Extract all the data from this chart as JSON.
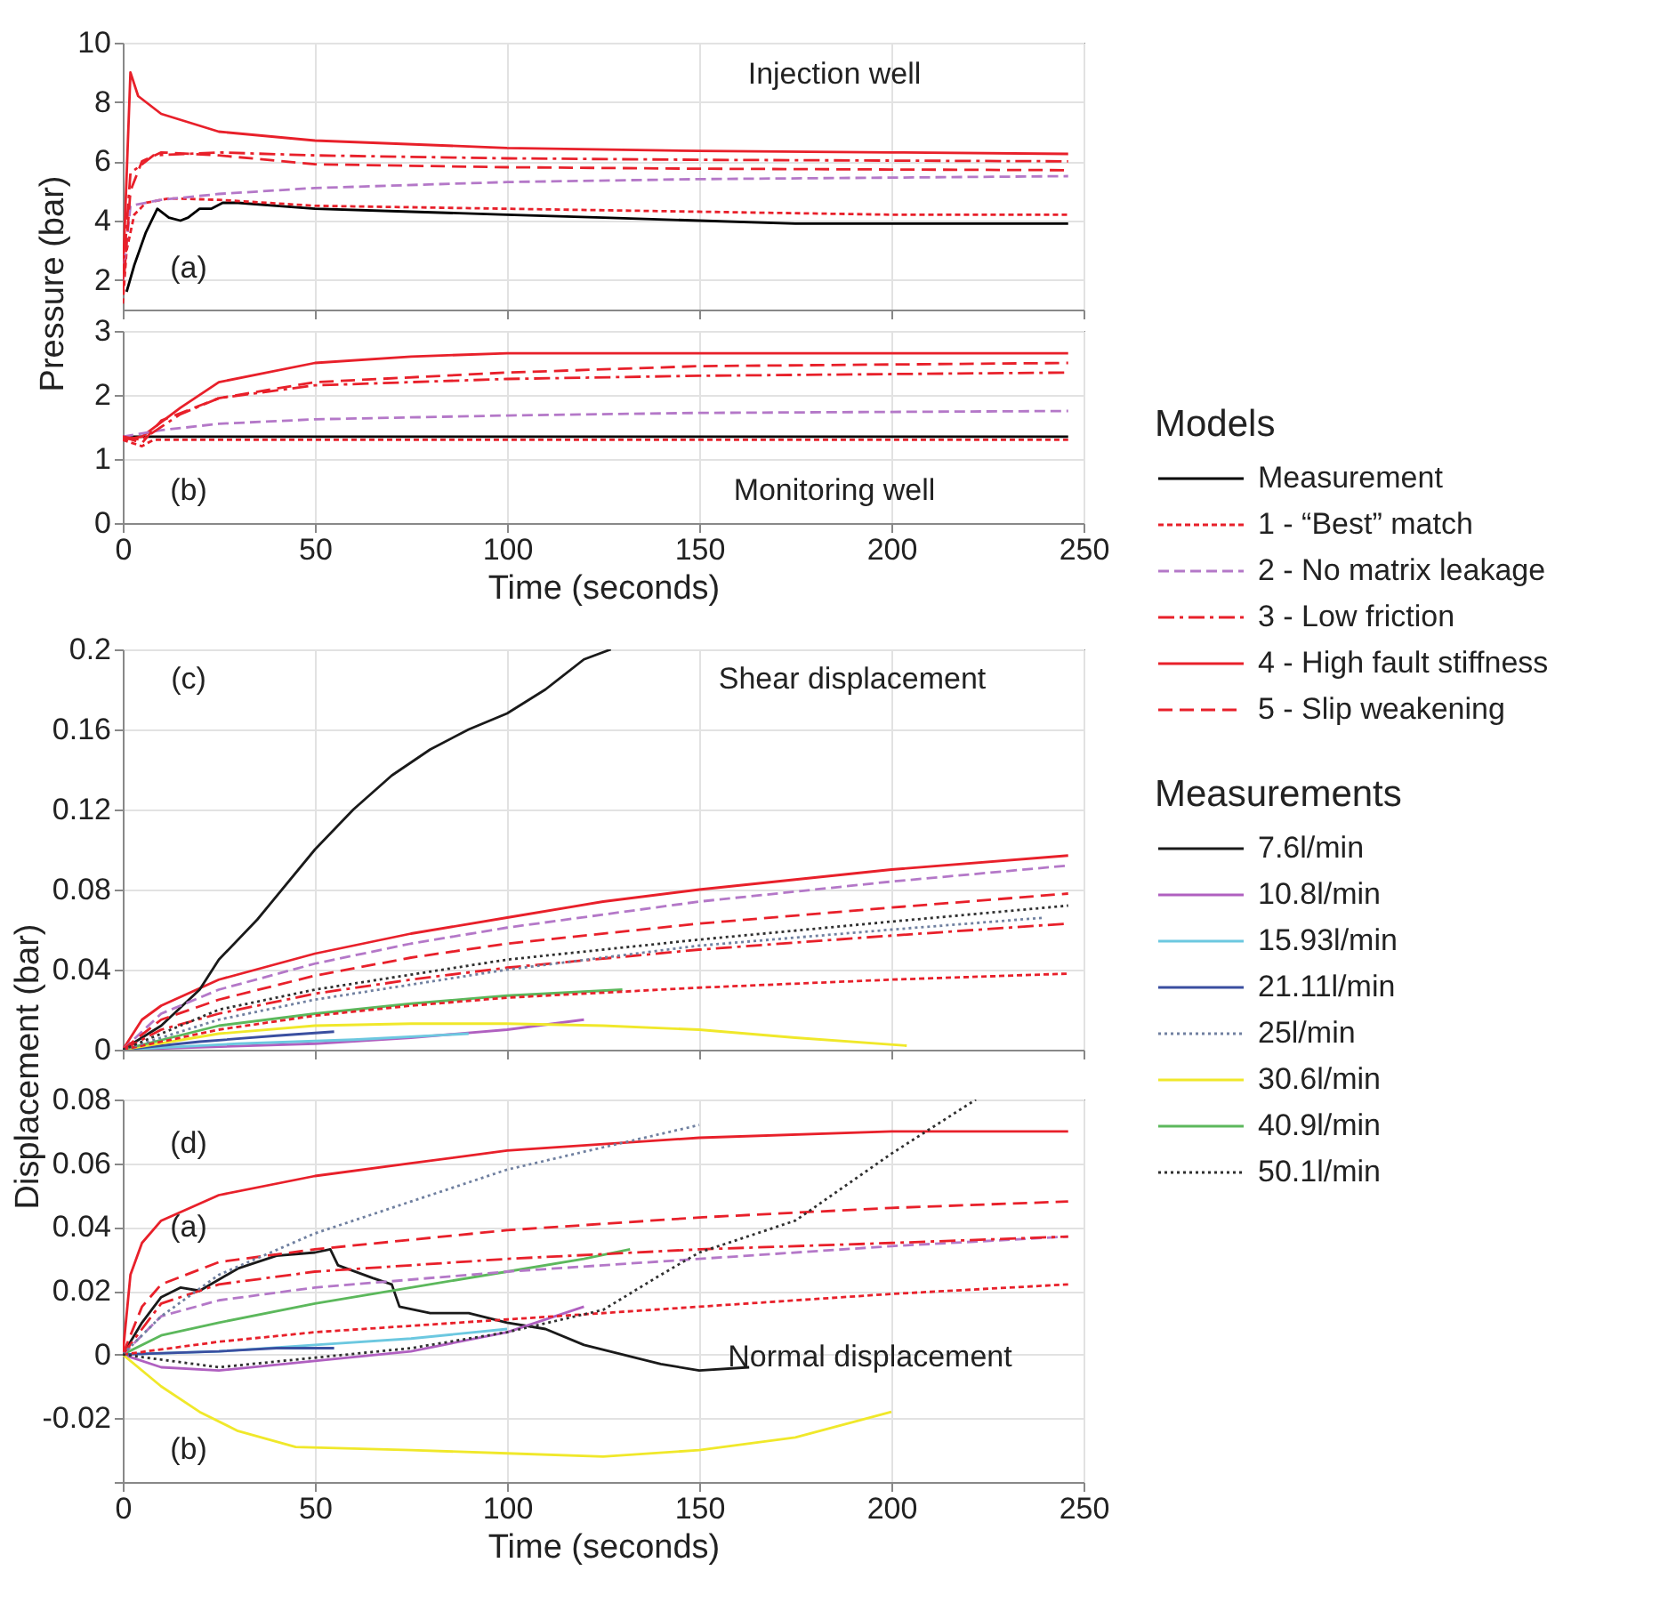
{
  "chart_data": [
    {
      "type": "line",
      "ylabel": "Pressure (bar)",
      "xlim": [
        0,
        250
      ],
      "xticks": [
        0,
        50,
        100,
        150,
        200,
        250
      ],
      "ylim": [
        1,
        10
      ],
      "yticks": [
        2,
        4,
        6,
        8,
        10
      ],
      "grid": true,
      "tick_labels": "y",
      "legend": "right",
      "legend_title": "Models",
      "annotations": [
        "(a)",
        "Injection well"
      ],
      "series": [
        {
          "name": "Measurement",
          "color": "#000000",
          "line_style": "solid",
          "x": [
            1,
            3,
            6,
            9,
            12,
            15,
            17,
            20,
            23,
            26,
            30,
            40,
            50,
            75,
            100,
            125,
            150,
            175,
            200,
            246
          ],
          "values": [
            1.6,
            2.5,
            3.6,
            4.4,
            4.1,
            4.0,
            4.1,
            4.4,
            4.4,
            4.6,
            4.6,
            4.5,
            4.4,
            4.3,
            4.2,
            4.1,
            4.0,
            3.9,
            3.9,
            3.9
          ]
        },
        {
          "name": "1 - “Best” match",
          "color": "#e8202a",
          "line_style": "dotted",
          "x": [
            0,
            1,
            3,
            6,
            12,
            25,
            50,
            100,
            150,
            200,
            246
          ],
          "values": [
            1.2,
            3.0,
            4.2,
            4.6,
            4.75,
            4.7,
            4.5,
            4.4,
            4.3,
            4.2,
            4.2
          ]
        },
        {
          "name": "2 - No matrix leakage",
          "color": "#b478c8",
          "line_style": "dashed",
          "x": [
            0,
            2,
            10,
            25,
            50,
            100,
            150,
            200,
            246
          ],
          "values": [
            2,
            4.5,
            4.7,
            4.9,
            5.1,
            5.3,
            5.4,
            5.45,
            5.5
          ]
        },
        {
          "name": "3 - Low friction",
          "color": "#e8202a",
          "line_style": "dashdot",
          "x": [
            0,
            2,
            8,
            25,
            50,
            100,
            150,
            246
          ],
          "values": [
            2,
            5.6,
            6.2,
            6.3,
            6.2,
            6.1,
            6.05,
            6.0
          ]
        },
        {
          "name": "4 - High fault stiffness",
          "color": "#e8202a",
          "line_style": "solid",
          "x": [
            0,
            2,
            4,
            10,
            25,
            50,
            100,
            150,
            200,
            246
          ],
          "values": [
            2,
            9.0,
            8.2,
            7.6,
            7.0,
            6.7,
            6.45,
            6.35,
            6.3,
            6.25
          ]
        },
        {
          "name": "5 - Slip weakening",
          "color": "#e8202a",
          "line_style": "dashed",
          "x": [
            0,
            2,
            5,
            10,
            25,
            50,
            100,
            150,
            246
          ],
          "values": [
            1.5,
            5,
            6.0,
            6.3,
            6.2,
            5.9,
            5.8,
            5.75,
            5.7
          ]
        }
      ]
    },
    {
      "type": "line",
      "xlabel": "Time (seconds)",
      "xlim": [
        0,
        250
      ],
      "xticks": [
        0,
        50,
        100,
        150,
        200,
        250
      ],
      "ylim": [
        0,
        3
      ],
      "yticks": [
        0,
        1,
        2,
        3
      ],
      "grid": true,
      "annotations": [
        "(b)",
        "Monitoring well"
      ],
      "series": [
        {
          "color": "#000000",
          "line_style": "solid",
          "x": [
            0,
            246
          ],
          "values": [
            1.35,
            1.35
          ]
        },
        {
          "color": "#e8202a",
          "line_style": "dotted",
          "x": [
            0,
            5,
            8,
            246
          ],
          "values": [
            1.3,
            1.2,
            1.3,
            1.3
          ]
        },
        {
          "color": "#b478c8",
          "line_style": "dashed",
          "x": [
            0,
            10,
            25,
            50,
            100,
            150,
            246
          ],
          "values": [
            1.35,
            1.45,
            1.55,
            1.62,
            1.68,
            1.72,
            1.75
          ]
        },
        {
          "color": "#e8202a",
          "line_style": "dashdot",
          "x": [
            0,
            5,
            15,
            25,
            50,
            100,
            150,
            246
          ],
          "values": [
            1.35,
            1.3,
            1.7,
            1.95,
            2.15,
            2.25,
            2.3,
            2.35
          ]
        },
        {
          "color": "#e8202a",
          "line_style": "solid",
          "x": [
            0,
            5,
            15,
            25,
            50,
            75,
            100,
            246
          ],
          "values": [
            1.3,
            1.35,
            1.8,
            2.2,
            2.5,
            2.6,
            2.65,
            2.65
          ]
        },
        {
          "color": "#e8202a",
          "line_style": "dashed",
          "x": [
            0,
            5,
            10,
            25,
            50,
            100,
            150,
            246
          ],
          "values": [
            1.35,
            1.25,
            1.6,
            1.95,
            2.2,
            2.35,
            2.45,
            2.5
          ]
        }
      ]
    },
    {
      "type": "line",
      "ylabel": "Displacement (bar)",
      "xlim": [
        0,
        250
      ],
      "xticks": [
        0,
        50,
        100,
        150,
        200,
        250
      ],
      "ylim": [
        0,
        0.2
      ],
      "yticks": [
        0,
        0.04,
        0.08,
        0.12,
        0.16,
        0.2
      ],
      "grid": true,
      "tick_labels": "y",
      "legend": "right",
      "legend_title": "Measurements",
      "annotations": [
        "(c)",
        "Shear displacement"
      ],
      "series": [
        {
          "color": "#e8202a",
          "line_style": "dotted",
          "x": [
            0,
            10,
            25,
            50,
            75,
            100,
            150,
            200,
            246
          ],
          "values": [
            0,
            0.004,
            0.01,
            0.017,
            0.022,
            0.026,
            0.031,
            0.035,
            0.038
          ]
        },
        {
          "color": "#b478c8",
          "line_style": "dashed",
          "x": [
            0,
            10,
            25,
            50,
            75,
            100,
            150,
            200,
            246
          ],
          "values": [
            0,
            0.018,
            0.03,
            0.043,
            0.053,
            0.061,
            0.074,
            0.084,
            0.092
          ]
        },
        {
          "color": "#e8202a",
          "line_style": "dashdot",
          "x": [
            0,
            10,
            25,
            50,
            75,
            100,
            150,
            200,
            246
          ],
          "values": [
            0,
            0.01,
            0.018,
            0.028,
            0.035,
            0.041,
            0.05,
            0.057,
            0.063
          ]
        },
        {
          "color": "#e8202a",
          "line_style": "solid",
          "x": [
            0,
            5,
            10,
            25,
            50,
            75,
            100,
            125,
            150,
            200,
            246
          ],
          "values": [
            0,
            0.015,
            0.022,
            0.035,
            0.048,
            0.058,
            0.066,
            0.074,
            0.08,
            0.09,
            0.097
          ]
        },
        {
          "color": "#e8202a",
          "line_style": "dashed",
          "x": [
            0,
            10,
            25,
            50,
            75,
            100,
            150,
            200,
            246
          ],
          "values": [
            0,
            0.015,
            0.025,
            0.037,
            0.046,
            0.053,
            0.063,
            0.071,
            0.078
          ]
        },
        {
          "name": "7.6l/min",
          "color": "#1a1a1a",
          "line_style": "solid",
          "x": [
            0,
            10,
            20,
            25,
            35,
            50,
            60,
            70,
            80,
            90,
            100,
            110,
            120,
            127
          ],
          "values": [
            0,
            0.012,
            0.03,
            0.045,
            0.065,
            0.1,
            0.12,
            0.137,
            0.15,
            0.16,
            0.168,
            0.18,
            0.195,
            0.2
          ]
        },
        {
          "name": "10.8l/min",
          "color": "#b060c0",
          "line_style": "solid",
          "x": [
            0,
            50,
            75,
            100,
            120
          ],
          "values": [
            0,
            0.003,
            0.006,
            0.01,
            0.015
          ]
        },
        {
          "name": "15.93l/min",
          "color": "#6cc8e0",
          "line_style": "solid",
          "x": [
            0,
            30,
            60,
            90
          ],
          "values": [
            0,
            0.003,
            0.005,
            0.008
          ]
        },
        {
          "name": "21.11l/min",
          "color": "#3a4fa0",
          "line_style": "solid",
          "x": [
            0,
            20,
            40,
            55
          ],
          "values": [
            0,
            0.004,
            0.007,
            0.009
          ]
        },
        {
          "name": "25l/min",
          "color": "#7080a0",
          "line_style": "dotted",
          "x": [
            0,
            25,
            50,
            100,
            150,
            200,
            240
          ],
          "values": [
            0,
            0.015,
            0.025,
            0.04,
            0.052,
            0.06,
            0.066
          ]
        },
        {
          "name": "30.6l/min",
          "color": "#f0e82a",
          "line_style": "solid",
          "x": [
            0,
            25,
            50,
            75,
            100,
            125,
            150,
            175,
            204
          ],
          "values": [
            0,
            0.008,
            0.012,
            0.013,
            0.013,
            0.012,
            0.01,
            0.006,
            0.002
          ]
        },
        {
          "name": "40.9l/min",
          "color": "#5cb85c",
          "line_style": "solid",
          "x": [
            0,
            25,
            50,
            75,
            100,
            130
          ],
          "values": [
            0,
            0.012,
            0.018,
            0.023,
            0.027,
            0.03
          ]
        },
        {
          "name": "50.1l/min",
          "color": "#303030",
          "line_style": "dotted",
          "x": [
            0,
            25,
            50,
            100,
            150,
            200,
            246
          ],
          "values": [
            0,
            0.02,
            0.03,
            0.045,
            0.055,
            0.064,
            0.072
          ]
        }
      ]
    },
    {
      "type": "line",
      "xlabel": "Time (seconds)",
      "xlim": [
        0,
        250
      ],
      "xticks": [
        0,
        50,
        100,
        150,
        200,
        250
      ],
      "ylim": [
        -0.04,
        0.08
      ],
      "yticks": [
        {
          "value": -0.04,
          "label": null
        },
        -0.02,
        0,
        0.02,
        0.04,
        0.06,
        0.08
      ],
      "grid": true,
      "annotations": [
        "(d)",
        "(a)",
        "(b)",
        "Normal displacement"
      ],
      "series": [
        {
          "color": "#e8202a",
          "line_style": "dotted",
          "x": [
            0,
            25,
            50,
            100,
            150,
            200,
            246
          ],
          "values": [
            0,
            0.004,
            0.007,
            0.011,
            0.015,
            0.019,
            0.022
          ]
        },
        {
          "color": "#b478c8",
          "line_style": "dashed",
          "x": [
            0,
            10,
            25,
            50,
            100,
            150,
            200,
            246
          ],
          "values": [
            0,
            0.012,
            0.017,
            0.021,
            0.026,
            0.03,
            0.034,
            0.037
          ]
        },
        {
          "color": "#e8202a",
          "line_style": "dashdot",
          "x": [
            0,
            10,
            25,
            50,
            100,
            150,
            200,
            246
          ],
          "values": [
            0,
            0.016,
            0.022,
            0.026,
            0.03,
            0.033,
            0.035,
            0.037
          ]
        },
        {
          "color": "#e8202a",
          "line_style": "solid",
          "x": [
            0,
            2,
            5,
            10,
            25,
            50,
            75,
            100,
            150,
            200,
            246
          ],
          "values": [
            0,
            0.025,
            0.035,
            0.042,
            0.05,
            0.056,
            0.06,
            0.064,
            0.068,
            0.07,
            0.07
          ]
        },
        {
          "color": "#e8202a",
          "line_style": "dashed",
          "x": [
            0,
            5,
            10,
            25,
            50,
            75,
            100,
            150,
            200,
            246
          ],
          "values": [
            0,
            0.015,
            0.022,
            0.029,
            0.033,
            0.036,
            0.039,
            0.043,
            0.046,
            0.048
          ]
        },
        {
          "color": "#1a1a1a",
          "line_style": "solid",
          "x": [
            0,
            5,
            10,
            15,
            20,
            30,
            40,
            50,
            54,
            56,
            65,
            70,
            72,
            80,
            90,
            100,
            110,
            120,
            130,
            140,
            150,
            163
          ],
          "values": [
            0,
            0.01,
            0.018,
            0.021,
            0.02,
            0.027,
            0.031,
            0.032,
            0.033,
            0.028,
            0.024,
            0.022,
            0.015,
            0.013,
            0.013,
            0.01,
            0.008,
            0.003,
            0,
            -0.003,
            -0.005,
            -0.004
          ]
        },
        {
          "color": "#b060c0",
          "line_style": "solid",
          "x": [
            0,
            10,
            25,
            50,
            75,
            100,
            120
          ],
          "values": [
            0,
            -0.004,
            -0.005,
            -0.002,
            0.001,
            0.007,
            0.015
          ]
        },
        {
          "color": "#6cc8e0",
          "line_style": "solid",
          "x": [
            0,
            25,
            50,
            75,
            100
          ],
          "values": [
            0,
            0.001,
            0.003,
            0.005,
            0.008
          ]
        },
        {
          "color": "#3a4fa0",
          "line_style": "solid",
          "x": [
            0,
            25,
            40,
            55
          ],
          "values": [
            0,
            0.001,
            0.002,
            0.002
          ]
        },
        {
          "color": "#7080a0",
          "line_style": "dotted",
          "x": [
            0,
            10,
            25,
            50,
            75,
            100,
            125,
            150
          ],
          "values": [
            0,
            0.012,
            0.025,
            0.038,
            0.048,
            0.058,
            0.065,
            0.072
          ]
        },
        {
          "color": "#f0e82a",
          "line_style": "solid",
          "x": [
            0,
            10,
            20,
            30,
            45,
            75,
            100,
            125,
            150,
            175,
            200
          ],
          "values": [
            0,
            -0.01,
            -0.018,
            -0.024,
            -0.029,
            -0.03,
            -0.031,
            -0.032,
            -0.03,
            -0.026,
            -0.018
          ]
        },
        {
          "color": "#5cb85c",
          "line_style": "solid",
          "x": [
            0,
            10,
            25,
            50,
            75,
            100,
            120,
            132
          ],
          "values": [
            0,
            0.006,
            0.01,
            0.016,
            0.021,
            0.026,
            0.03,
            0.033
          ]
        },
        {
          "color": "#303030",
          "line_style": "dotted",
          "x": [
            0,
            25,
            50,
            75,
            100,
            125,
            140,
            150,
            175,
            200,
            222
          ],
          "values": [
            0,
            -0.004,
            -0.001,
            0.002,
            0.007,
            0.014,
            0.025,
            0.032,
            0.042,
            0.063,
            0.08
          ]
        }
      ]
    }
  ]
}
